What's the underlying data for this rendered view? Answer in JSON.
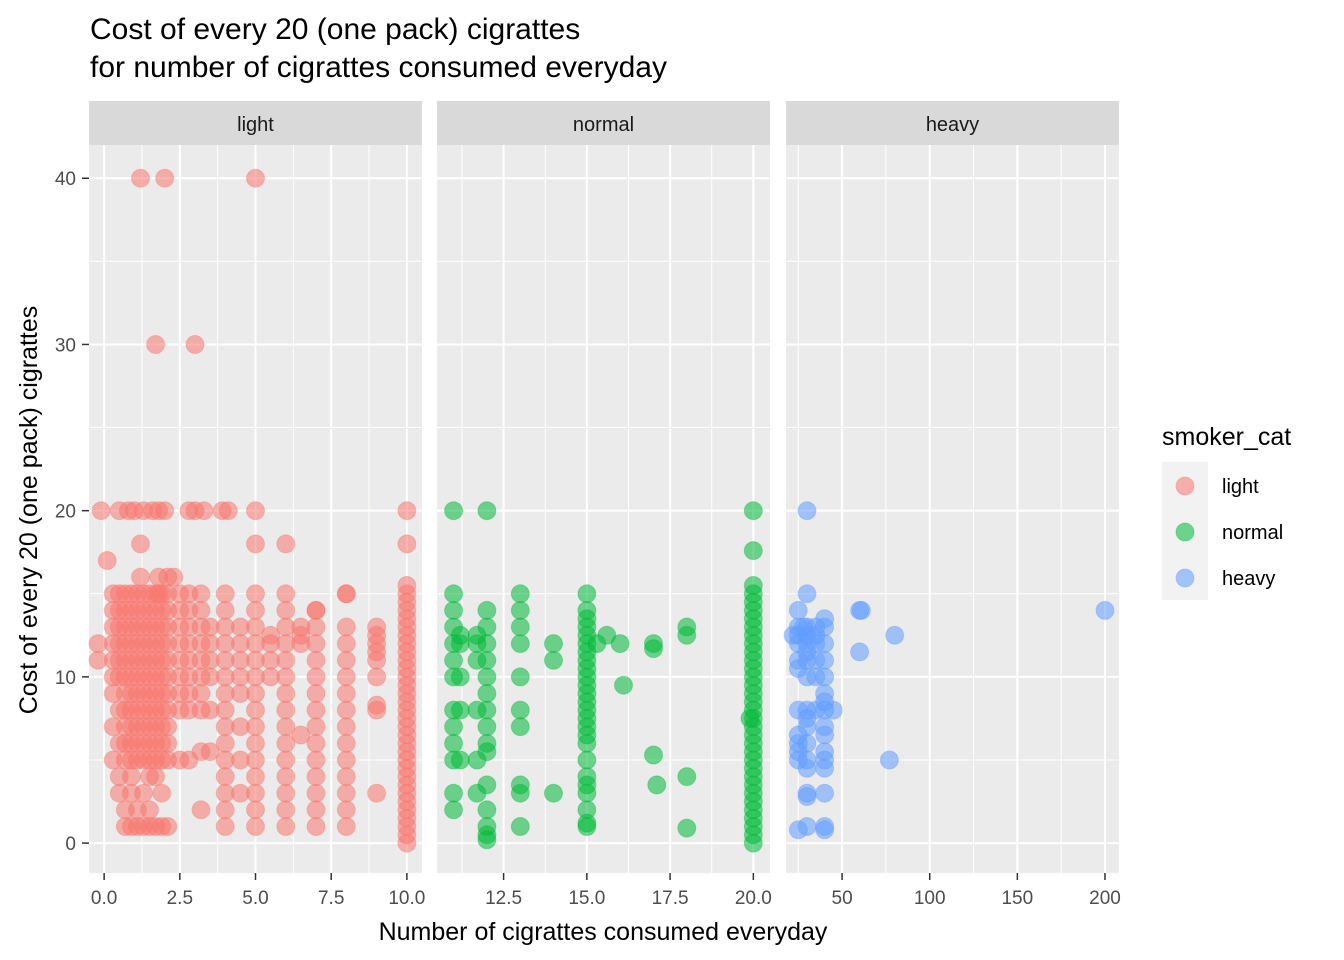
{
  "chart_data": {
    "type": "scatter",
    "title": [
      "Cost of every 20 (one pack) cigrattes",
      "for number of cigrattes consumed everyday"
    ],
    "xlabel": "Number of cigrattes consumed everyday",
    "ylabel": "Cost of every 20 (one pack) cigrattes",
    "ylim": [
      -1.8,
      42
    ],
    "yticks": [
      0,
      10,
      20,
      30,
      40
    ],
    "grid": true,
    "legend": {
      "title": "smoker_cat",
      "placement": "right",
      "entries": [
        {
          "label": "light",
          "color": "#F8766D"
        },
        {
          "label": "normal",
          "color": "#00BA38"
        },
        {
          "label": "heavy",
          "color": "#619CFF"
        }
      ]
    },
    "facets": [
      {
        "name": "light",
        "color": "#F8766D",
        "xlim": [
          -0.5,
          10.5
        ],
        "xticks": [
          0.0,
          2.5,
          5.0,
          7.5,
          10.0
        ],
        "xtick_labels": [
          "0.0",
          "2.5",
          "5.0",
          "7.5",
          "10.0"
        ],
        "columns": [
          {
            "x": 0.3,
            "y": [
              5,
              7,
              9,
              10,
              11,
              12,
              13,
              14,
              15
            ]
          },
          {
            "x": 0.5,
            "y": [
              3,
              4,
              6,
              8,
              10,
              11,
              12,
              13,
              14,
              15
            ]
          },
          {
            "x": 0.7,
            "y": [
              1,
              2,
              5,
              6,
              7,
              8,
              9,
              10,
              11,
              12,
              13,
              14,
              15
            ]
          },
          {
            "x": 0.9,
            "y": [
              1,
              3,
              4,
              5,
              6,
              7,
              8,
              9,
              10,
              11,
              12,
              13,
              14,
              15
            ]
          },
          {
            "x": 1.1,
            "y": [
              1,
              2,
              5,
              6,
              7,
              8,
              9,
              10,
              11,
              12,
              13,
              14,
              15
            ]
          },
          {
            "x": 1.3,
            "y": [
              1,
              3,
              5,
              6,
              7,
              8,
              9,
              10,
              11,
              12,
              13,
              14,
              15
            ]
          },
          {
            "x": 1.5,
            "y": [
              1,
              2,
              4,
              5,
              6,
              7,
              8,
              9,
              10,
              11,
              12,
              13,
              14,
              15
            ]
          },
          {
            "x": 1.7,
            "y": [
              1,
              4,
              5,
              6,
              7,
              8,
              9,
              10,
              11,
              12,
              13,
              14,
              15
            ]
          },
          {
            "x": 1.9,
            "y": [
              1,
              3,
              5,
              6,
              7,
              8,
              9,
              10,
              11,
              12,
              13,
              14,
              15
            ]
          },
          {
            "x": 2.1,
            "y": [
              1,
              5,
              6,
              7,
              8,
              9,
              10,
              11,
              12,
              13,
              14,
              15
            ]
          },
          {
            "x": 2.5,
            "y": [
              5,
              8,
              9,
              10,
              11,
              12,
              13,
              14,
              15
            ]
          },
          {
            "x": 2.8,
            "y": [
              5,
              8,
              9,
              10,
              11,
              12,
              13,
              14,
              15
            ]
          },
          {
            "x": 3.2,
            "y": [
              2,
              5.5,
              8,
              9,
              10,
              11,
              12,
              13,
              14,
              15
            ]
          },
          {
            "x": 3.5,
            "y": [
              5.5,
              8,
              10,
              11,
              12,
              13
            ]
          },
          {
            "x": 4.0,
            "y": [
              1,
              2,
              3,
              4,
              5,
              6,
              7,
              8,
              9,
              10,
              11,
              12,
              13,
              14,
              15
            ]
          },
          {
            "x": 4.5,
            "y": [
              3,
              5,
              7,
              9,
              10,
              11,
              12,
              13
            ]
          },
          {
            "x": 5.0,
            "y": [
              1,
              2,
              3,
              4,
              5,
              6,
              7,
              8,
              9,
              10,
              11,
              12,
              13,
              14,
              15
            ]
          },
          {
            "x": 5.5,
            "y": [
              10,
              11,
              12,
              12.5
            ]
          },
          {
            "x": 6.0,
            "y": [
              1,
              2,
              3,
              4,
              5,
              6,
              7,
              8,
              9,
              10,
              11,
              12,
              13,
              14,
              15
            ]
          },
          {
            "x": 6.5,
            "y": [
              6.5,
              12,
              12.5,
              13
            ]
          },
          {
            "x": 7.0,
            "y": [
              1,
              2,
              3,
              4,
              5,
              6,
              7,
              8,
              9,
              10,
              11,
              12,
              13,
              14
            ]
          },
          {
            "x": 8.0,
            "y": [
              1,
              2,
              3,
              4,
              5,
              6,
              7,
              8,
              9,
              10,
              11,
              12,
              13,
              15
            ]
          },
          {
            "x": 9.0,
            "y": [
              3,
              8,
              8.3,
              10,
              11,
              11.5,
              12,
              12.5,
              13
            ]
          },
          {
            "x": 10.0,
            "y": [
              0,
              0.5,
              1,
              1.5,
              2,
              2.5,
              3,
              3.5,
              4,
              4.5,
              5,
              5.5,
              6,
              6.5,
              7,
              7.5,
              8,
              8.5,
              9,
              9.5,
              10,
              10.5,
              11,
              11.5,
              12,
              12.5,
              13,
              13.5,
              14,
              14.5,
              15,
              15.5,
              18,
              20
            ]
          }
        ],
        "points": [
          [
            1.2,
            40
          ],
          [
            2.0,
            40
          ],
          [
            5.0,
            40
          ],
          [
            1.7,
            30
          ],
          [
            3.0,
            30
          ],
          [
            -0.1,
            20
          ],
          [
            0.5,
            20
          ],
          [
            0.8,
            20
          ],
          [
            1.0,
            20
          ],
          [
            1.3,
            20
          ],
          [
            1.6,
            20
          ],
          [
            1.8,
            20
          ],
          [
            2.0,
            20
          ],
          [
            2.8,
            20
          ],
          [
            3.0,
            20
          ],
          [
            3.3,
            20
          ],
          [
            3.9,
            20
          ],
          [
            4.1,
            20
          ],
          [
            5.0,
            20
          ],
          [
            5.0,
            18
          ],
          [
            6.0,
            18
          ],
          [
            1.2,
            18
          ],
          [
            0.1,
            17
          ],
          [
            1.2,
            16
          ],
          [
            1.8,
            16
          ],
          [
            2.1,
            16
          ],
          [
            2.3,
            16
          ],
          [
            -0.2,
            12
          ],
          [
            -0.2,
            11
          ],
          [
            1.8,
            15
          ],
          [
            8.0,
            15
          ],
          [
            7.0,
            14
          ]
        ]
      },
      {
        "name": "normal",
        "color": "#00BA38",
        "xlim": [
          10.5,
          20.5
        ],
        "xticks": [
          12.5,
          15.0,
          17.5,
          20.0
        ],
        "xtick_labels": [
          "12.5",
          "15.0",
          "17.5",
          "20.0"
        ],
        "columns": [
          {
            "x": 11.0,
            "y": [
              2,
              3,
              5,
              6,
              7,
              8,
              10,
              11,
              12,
              13,
              14,
              15
            ]
          },
          {
            "x": 11.2,
            "y": [
              5,
              8,
              10,
              12,
              12.5
            ]
          },
          {
            "x": 11.7,
            "y": [
              3,
              5,
              8,
              11,
              12,
              12.5
            ]
          },
          {
            "x": 12.0,
            "y": [
              0.2,
              0.5,
              1,
              2,
              3.5,
              5.5,
              6,
              7,
              8,
              9,
              10,
              11,
              12,
              13,
              14
            ]
          },
          {
            "x": 13.0,
            "y": [
              1,
              3,
              3.5,
              7,
              8,
              10,
              12,
              13,
              14,
              15
            ]
          },
          {
            "x": 14.0,
            "y": [
              3,
              11,
              12
            ]
          },
          {
            "x": 15.0,
            "y": [
              1,
              1.2,
              2,
              3,
              3.5,
              4,
              5,
              6,
              6.5,
              7,
              7.5,
              8,
              8.5,
              9,
              9.5,
              10,
              10.5,
              11,
              11.5,
              12,
              12.5,
              13,
              13.5,
              14,
              15
            ]
          },
          {
            "x": 20.0,
            "y": [
              0,
              0.5,
              1,
              1.5,
              2,
              2.5,
              3,
              3.5,
              4,
              4.5,
              5,
              5.5,
              6,
              6.5,
              7,
              7.5,
              8,
              8.5,
              9,
              9.5,
              10,
              10.5,
              11,
              11.5,
              12,
              12.5,
              13,
              13.5,
              14,
              14.5,
              15,
              15.5,
              17.6,
              20
            ]
          }
        ],
        "points": [
          [
            11.0,
            20
          ],
          [
            12.0,
            20
          ],
          [
            15.3,
            12
          ],
          [
            15.6,
            12.5
          ],
          [
            16.0,
            12
          ],
          [
            16.1,
            9.5
          ],
          [
            17.0,
            12
          ],
          [
            17.0,
            11.7
          ],
          [
            17.0,
            5.3
          ],
          [
            17.1,
            3.5
          ],
          [
            18.0,
            12.5
          ],
          [
            18.0,
            13
          ],
          [
            18.0,
            4
          ],
          [
            18.0,
            0.9
          ],
          [
            19.9,
            7.5
          ]
        ]
      },
      {
        "name": "heavy",
        "color": "#619CFF",
        "xlim": [
          18,
          208
        ],
        "xticks": [
          50,
          100,
          150,
          200
        ],
        "xtick_labels": [
          "50",
          "100",
          "150",
          "200"
        ],
        "columns": [
          {
            "x": 25.0,
            "y": [
              0.8,
              5,
              5.5,
              6,
              6.5,
              8,
              10.5,
              11,
              12,
              12.5,
              13,
              14
            ]
          },
          {
            "x": 30.0,
            "y": [
              1,
              2.8,
              3,
              4.5,
              5,
              6,
              7,
              7.5,
              8,
              10,
              11,
              11.5,
              12,
              12.5,
              13,
              15,
              20
            ]
          },
          {
            "x": 35.0,
            "y": [
              8,
              10,
              11,
              12,
              12.5,
              13
            ]
          },
          {
            "x": 40.0,
            "y": [
              0.8,
              1,
              3,
              4.5,
              5,
              5.5,
              6.5,
              7,
              8,
              8.5,
              9,
              10,
              11,
              12,
              13,
              13.5
            ]
          }
        ],
        "points": [
          [
            22,
            12.5
          ],
          [
            28,
            13
          ],
          [
            45,
            8
          ],
          [
            60,
            14
          ],
          [
            61,
            14
          ],
          [
            60,
            11.5
          ],
          [
            80,
            12.5
          ],
          [
            77,
            5
          ],
          [
            200,
            14
          ]
        ]
      }
    ]
  }
}
